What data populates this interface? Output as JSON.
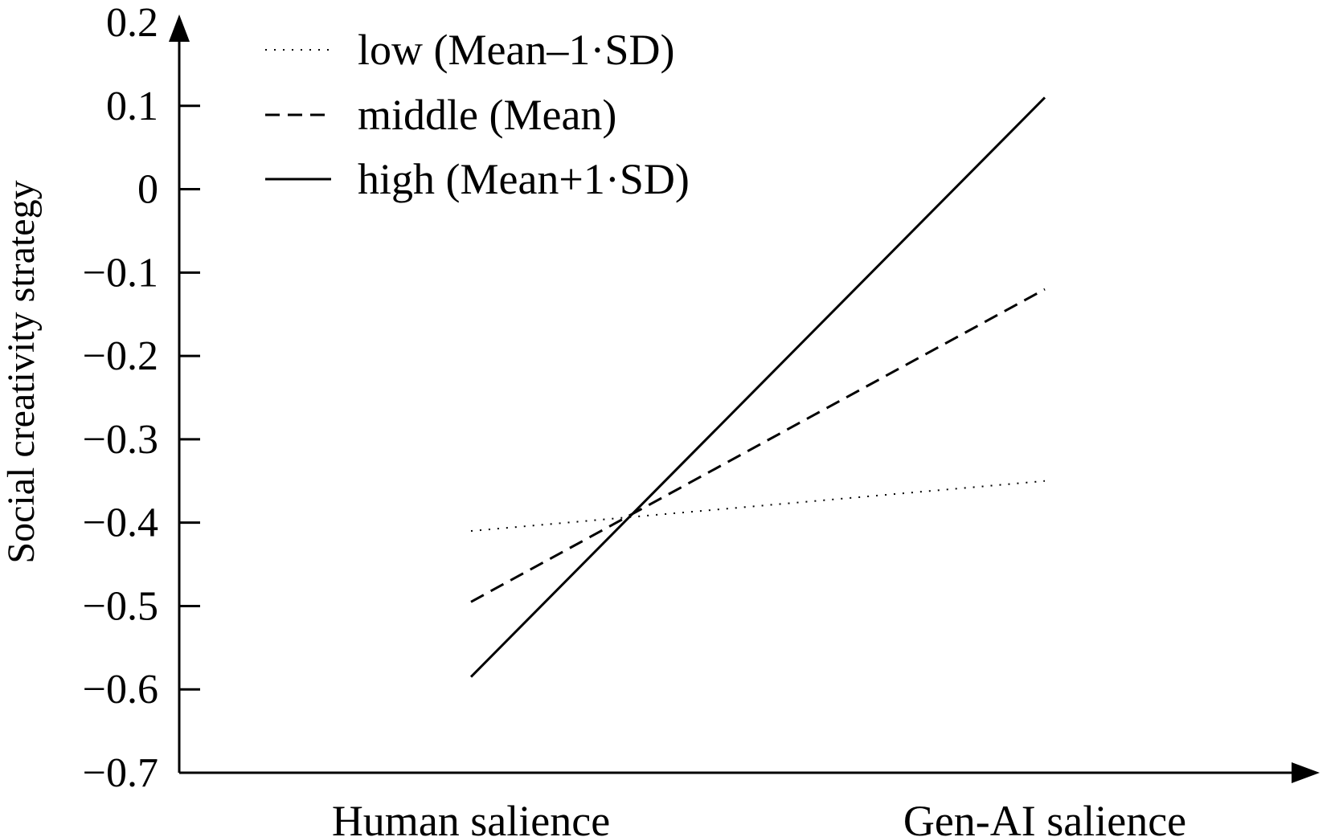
{
  "chart_data": {
    "type": "line",
    "title": "",
    "xlabel": "",
    "ylabel": "Social creativity strategy",
    "categories": [
      "Human salience",
      "Gen-AI salience"
    ],
    "ylim": [
      -0.7,
      0.2
    ],
    "yticks": [
      0.2,
      0.1,
      0,
      -0.1,
      -0.2,
      -0.3,
      -0.4,
      -0.5,
      -0.6,
      -0.7
    ],
    "ytick_labels": [
      "0.2",
      "0.1",
      "0",
      "−0.1",
      "−0.2",
      "−0.3",
      "−0.4",
      "−0.5",
      "−0.6",
      "−0.7"
    ],
    "grid": false,
    "legend_position": "top-left",
    "series": [
      {
        "name": "low (Mean–1·SD)",
        "style": "dotted",
        "color": "#000000",
        "values": [
          -0.41,
          -0.35
        ]
      },
      {
        "name": "middle (Mean)",
        "style": "dashed",
        "color": "#000000",
        "values": [
          -0.495,
          -0.12
        ]
      },
      {
        "name": "high (Mean+1·SD)",
        "style": "solid",
        "color": "#000000",
        "values": [
          -0.585,
          0.11
        ]
      }
    ]
  }
}
